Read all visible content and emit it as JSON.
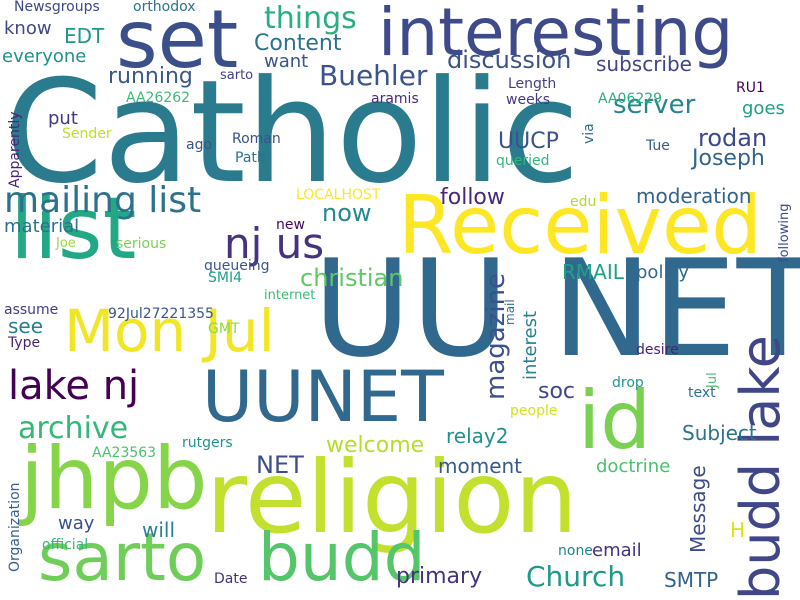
{
  "words": [
    {
      "text": "Catholic",
      "color": "#2a7b8e"
    },
    {
      "text": "UU NET",
      "color": "#31688e"
    },
    {
      "text": "religion",
      "color": "#c3e02e"
    },
    {
      "text": "interesting",
      "color": "#3e4a89"
    },
    {
      "text": "set",
      "color": "#3b4f8a"
    },
    {
      "text": "jhpb",
      "color": "#86d549"
    },
    {
      "text": "list",
      "color": "#22a884"
    },
    {
      "text": "Received",
      "color": "#fde725"
    },
    {
      "text": "id",
      "color": "#7ad151"
    },
    {
      "text": "budd lake",
      "color": "#404688"
    },
    {
      "text": "UUNET",
      "color": "#31688e"
    },
    {
      "text": "sarto",
      "color": "#6ece58"
    },
    {
      "text": "budd",
      "color": "#54c568"
    },
    {
      "text": "nj us",
      "color": "#46327e"
    },
    {
      "text": "Mon Jul",
      "color": "#f0e626"
    },
    {
      "text": "lake nj",
      "color": "#440154"
    },
    {
      "text": "mailing list",
      "color": "#2c728e"
    },
    {
      "text": "things",
      "color": "#29af7f"
    },
    {
      "text": "Content",
      "color": "#2c728e"
    },
    {
      "text": "Buehler",
      "color": "#3a548c"
    },
    {
      "text": "server",
      "color": "#25858e"
    },
    {
      "text": "discussion",
      "color": "#3b528b"
    },
    {
      "text": "subscribe",
      "color": "#414487"
    },
    {
      "text": "running",
      "color": "#38598c"
    },
    {
      "text": "rodan",
      "color": "#3e4989"
    },
    {
      "text": "Joseph",
      "color": "#32658e"
    },
    {
      "text": "UUCP",
      "color": "#3b528b"
    },
    {
      "text": "follow",
      "color": "#482878"
    },
    {
      "text": "moderation",
      "color": "#33638d"
    },
    {
      "text": "now",
      "color": "#238a8d"
    },
    {
      "text": "christian",
      "color": "#5ec962"
    },
    {
      "text": "material",
      "color": "#2e6f8e"
    },
    {
      "text": "RMAIL",
      "color": "#1fa187"
    },
    {
      "text": "policy",
      "color": "#31688e"
    },
    {
      "text": "magazine",
      "color": "#3c508b"
    },
    {
      "text": "interest",
      "color": "#26828e"
    },
    {
      "text": "soc",
      "color": "#3f4788"
    },
    {
      "text": "archive",
      "color": "#35b779"
    },
    {
      "text": "welcome",
      "color": "#b5de2b"
    },
    {
      "text": "relay2",
      "color": "#20928c"
    },
    {
      "text": "Subject",
      "color": "#2c738e"
    },
    {
      "text": "NET",
      "color": "#3d4e8a"
    },
    {
      "text": "moment",
      "color": "#375a8c"
    },
    {
      "text": "doctrine",
      "color": "#4ac16d"
    },
    {
      "text": "Message",
      "color": "#3e4c8a"
    },
    {
      "text": "Church",
      "color": "#1f9a8a"
    },
    {
      "text": "primary",
      "color": "#46337f"
    },
    {
      "text": "SMTP",
      "color": "#33638d"
    },
    {
      "text": "email",
      "color": "#46327e"
    },
    {
      "text": "will",
      "color": "#26818e"
    },
    {
      "text": "way",
      "color": "#3b518b"
    },
    {
      "text": "see",
      "color": "#277f8e"
    },
    {
      "text": "put",
      "color": "#453781"
    },
    {
      "text": "everyone",
      "color": "#21918c"
    },
    {
      "text": "know",
      "color": "#3f4889"
    },
    {
      "text": "EDT",
      "color": "#1f988b"
    },
    {
      "text": "want",
      "color": "#39568c"
    },
    {
      "text": "goes",
      "color": "#1f9e89"
    },
    {
      "text": "Tue",
      "color": "#355f8d"
    },
    {
      "text": "H",
      "color": "#dde318"
    },
    {
      "text": "following",
      "color": "#3e4c8a"
    },
    {
      "text": "Newsgroups",
      "color": "#3e4989"
    },
    {
      "text": "orthodox",
      "color": "#2c728e"
    },
    {
      "text": "sarto",
      "color": "#433e85"
    },
    {
      "text": "Length",
      "color": "#433e85"
    },
    {
      "text": "weeks",
      "color": "#453882"
    },
    {
      "text": "aramis",
      "color": "#472d7b"
    },
    {
      "text": "AA26262",
      "color": "#3bbb75"
    },
    {
      "text": "AA06229",
      "color": "#29af7f"
    },
    {
      "text": "RU1",
      "color": "#440154"
    },
    {
      "text": "Apparently",
      "color": "#482576"
    },
    {
      "text": "Sender",
      "color": "#c0df25"
    },
    {
      "text": "Roman",
      "color": "#3a538b"
    },
    {
      "text": "ago",
      "color": "#3b528b"
    },
    {
      "text": "Path",
      "color": "#2d718e"
    },
    {
      "text": "queried",
      "color": "#32b67a"
    },
    {
      "text": "via",
      "color": "#2d708e"
    },
    {
      "text": "LOCALHOST",
      "color": "#fde725"
    },
    {
      "text": "edu",
      "color": "#addc30"
    },
    {
      "text": "new",
      "color": "#46085c"
    },
    {
      "text": "queueing",
      "color": "#39568c"
    },
    {
      "text": "Joe",
      "color": "#98d83e"
    },
    {
      "text": "serious",
      "color": "#7ad151"
    },
    {
      "text": "SMI4",
      "color": "#1fa088"
    },
    {
      "text": "internet",
      "color": "#3bbb75"
    },
    {
      "text": "92Jul27221355",
      "color": "#39568c"
    },
    {
      "text": "assume",
      "color": "#433d84"
    },
    {
      "text": "GMT",
      "color": "#90d743"
    },
    {
      "text": "Type",
      "color": "#482575"
    },
    {
      "text": "mail",
      "color": "#2d708e"
    },
    {
      "text": "desire",
      "color": "#482475"
    },
    {
      "text": "drop",
      "color": "#1f968b"
    },
    {
      "text": "text",
      "color": "#2d708e"
    },
    {
      "text": "Jul",
      "color": "#44bf70"
    },
    {
      "text": "people",
      "color": "#d2e21b"
    },
    {
      "text": "rutgers",
      "color": "#21918c"
    },
    {
      "text": "AA23563",
      "color": "#4ac16d"
    },
    {
      "text": "Organization",
      "color": "#355f8d"
    },
    {
      "text": "official",
      "color": "#35b779"
    },
    {
      "text": "none",
      "color": "#26828e"
    },
    {
      "text": "Date",
      "color": "#46327e"
    }
  ]
}
